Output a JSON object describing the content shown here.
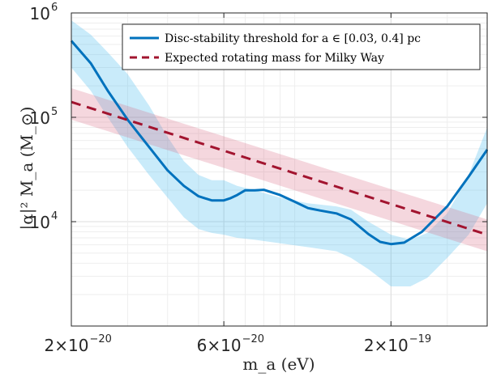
{
  "chart_data": {
    "type": "line",
    "xlabel": "m_a (eV)",
    "ylabel": "|α|² M_a (M_⊙)",
    "xscale": "log",
    "yscale": "log",
    "xlim": [
      2e-20,
      4e-19
    ],
    "ylim": [
      1000,
      1000000
    ],
    "grid": true,
    "legend_placement": "top-right",
    "x_ticks": [
      {
        "value": 2e-20,
        "mant": "2×10",
        "exp": "−20"
      },
      {
        "value": 6e-20,
        "mant": "6×10",
        "exp": "−20"
      },
      {
        "value": 2e-19,
        "mant": "2×10",
        "exp": "−19"
      }
    ],
    "y_ticks": [
      {
        "value": 10000,
        "mant": "10",
        "exp": "4"
      },
      {
        "value": 100000,
        "mant": "10",
        "exp": "5"
      },
      {
        "value": 1000000,
        "mant": "10",
        "exp": "6"
      }
    ],
    "series": [
      {
        "name": "Disc-stability threshold for a ∈ [0.03, 0.4] pc",
        "color": "#0072BD",
        "style": "solid",
        "x": [
          2e-20,
          2.3e-20,
          2.6e-20,
          3e-20,
          3.5e-20,
          4e-20,
          4.5e-20,
          5e-20,
          5.5e-20,
          6e-20,
          6.3e-20,
          6.6e-20,
          7e-20,
          7.5e-20,
          8e-20,
          9e-20,
          1e-19,
          1.1e-19,
          1.2e-19,
          1.35e-19,
          1.5e-19,
          1.7e-19,
          1.85e-19,
          2e-19,
          2.2e-19,
          2.5e-19,
          3e-19,
          3.5e-19,
          4e-19
        ],
        "y": [
          540000,
          330000,
          180000,
          95000,
          52000,
          31000,
          22000,
          17500,
          16000,
          16000,
          16800,
          18000,
          20000,
          20000,
          20200,
          18000,
          15500,
          13500,
          12800,
          12000,
          10500,
          7600,
          6400,
          6100,
          6300,
          8000,
          14000,
          27000,
          49000
        ]
      },
      {
        "name": "Expected rotating mass for Milky Way",
        "color": "#A2142F",
        "style": "dashed",
        "x": [
          2e-20,
          4e-19
        ],
        "y": [
          140000,
          7500
        ]
      }
    ],
    "bands": [
      {
        "of": "Disc-stability threshold for a ∈ [0.03, 0.4] pc",
        "color": "#4DBEEE",
        "opacity": 0.3,
        "x": [
          2e-20,
          2.3e-20,
          2.6e-20,
          3e-20,
          3.5e-20,
          4e-20,
          4.5e-20,
          5e-20,
          5.5e-20,
          6e-20,
          6.6e-20,
          7.5e-20,
          9e-20,
          1.1e-19,
          1.35e-19,
          1.5e-19,
          1.7e-19,
          2e-19,
          2.3e-19,
          2.6e-19,
          3e-19,
          3.5e-19,
          4e-19
        ],
        "upper": [
          850000,
          620000,
          420000,
          260000,
          130000,
          65000,
          38000,
          28000,
          25000,
          25000,
          22000,
          20000,
          17000,
          15000,
          14000,
          13000,
          10000,
          7500,
          6700,
          7800,
          12000,
          28000,
          80000
        ],
        "lower": [
          300000,
          180000,
          100000,
          52000,
          28000,
          17000,
          11000,
          8500,
          7800,
          7500,
          7000,
          6700,
          6200,
          5700,
          5200,
          4500,
          3500,
          2400,
          2400,
          2900,
          4500,
          7500,
          15000
        ]
      },
      {
        "of": "Expected rotating mass for Milky Way",
        "color": "#D95F7A",
        "opacity": 0.25,
        "x": [
          2e-20,
          4e-19
        ],
        "upper": [
          190000,
          10500
        ],
        "lower": [
          95000,
          5200
        ]
      }
    ]
  }
}
